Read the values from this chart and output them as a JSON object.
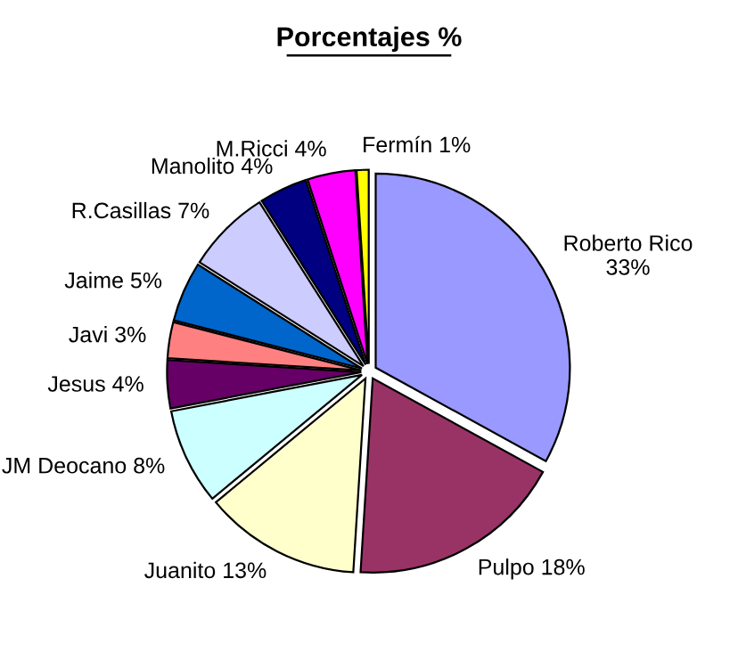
{
  "chart_data": {
    "type": "pie",
    "title": "Porcentajes %",
    "categories": [
      "Roberto Rico",
      "Pulpo",
      "Juanito",
      "JM Deocano",
      "Jesus",
      "Javi",
      "Jaime",
      "R.Casillas",
      "Manolito",
      "M.Ricci",
      "Fermín"
    ],
    "values": [
      33,
      18,
      13,
      8,
      4,
      3,
      5,
      7,
      4,
      4,
      1
    ],
    "value_labels": [
      "33%",
      "18%",
      "13%",
      "8%",
      "4%",
      "3%",
      "5%",
      "7%",
      "4%",
      "4%",
      "1%"
    ],
    "colors": [
      "#9999ff",
      "#993366",
      "#ffffcc",
      "#ccffff",
      "#660066",
      "#ff8080",
      "#0066cc",
      "#ccccff",
      "#000080",
      "#ff00ff",
      "#ffff00"
    ],
    "legend": false
  }
}
